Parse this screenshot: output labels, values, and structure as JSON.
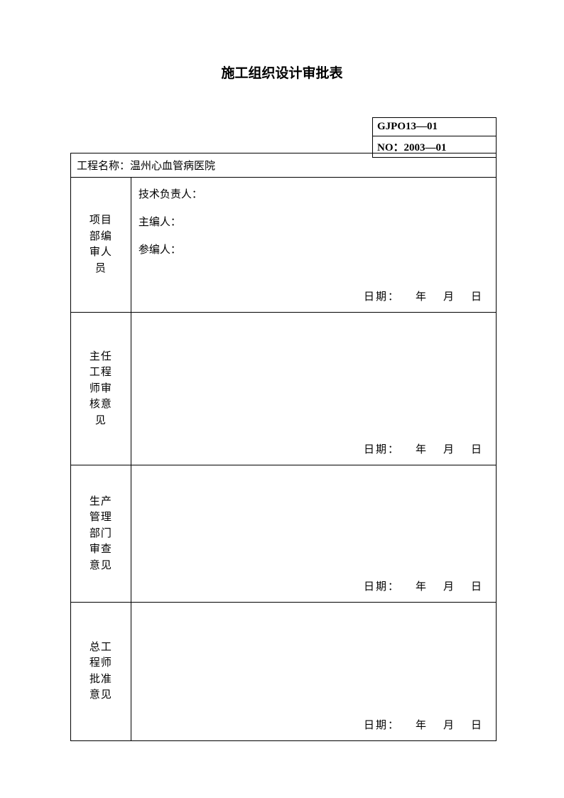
{
  "title": "施工组织设计审批表",
  "codeBox": {
    "line1": "GJPO13—01",
    "line2": "NO：2003—01"
  },
  "projectName": {
    "label": "工程名称：",
    "value": "温州心血管病医院"
  },
  "rows": [
    {
      "label": "项目\n部编\n审人\n员",
      "fields": [
        "技术负责人：",
        "主编人：",
        "参编人："
      ]
    },
    {
      "label": "主任\n工程\n师审\n核意\n见",
      "fields": []
    },
    {
      "label": "生产\n管理\n部门\n审查\n意见",
      "fields": []
    },
    {
      "label": "总工\n程师\n批准\n意见",
      "fields": []
    }
  ],
  "dateTemplate": {
    "label": "日期：",
    "year": "年",
    "month": "月",
    "day": "日"
  },
  "style": {
    "pageWidth": 794,
    "pageHeight": 1123,
    "background": "#ffffff",
    "textColor": "#000000",
    "borderColor": "#000000",
    "borderWidth": 1.5,
    "titleFontSize": 19,
    "bodyFontSize": 15,
    "fontFamily": "SimSun"
  }
}
